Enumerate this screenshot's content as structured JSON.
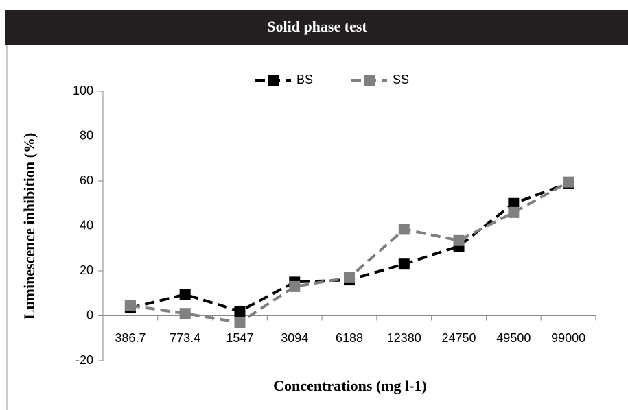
{
  "chart_data": {
    "type": "line",
    "title": "Solid phase test",
    "x_label": "Concentrations (mg l-1)",
    "y_label": "Luminescence inhibition (%)",
    "categories": [
      "386.7",
      "773.4",
      "1547",
      "3094",
      "6188",
      "12380",
      "24750",
      "49500",
      "99000"
    ],
    "series": [
      {
        "name": "BS",
        "color": "#000000",
        "values": [
          3.5,
          9.5,
          2,
          15,
          16,
          23,
          31,
          50,
          59
        ]
      },
      {
        "name": "SS",
        "color": "#808080",
        "values": [
          4.5,
          1,
          -3,
          13,
          17,
          38.5,
          33.5,
          46,
          59.5
        ]
      }
    ],
    "ylim": [
      -20,
      100
    ],
    "yticks": [
      -20,
      0,
      20,
      40,
      60,
      80,
      100
    ],
    "legend": "top"
  }
}
